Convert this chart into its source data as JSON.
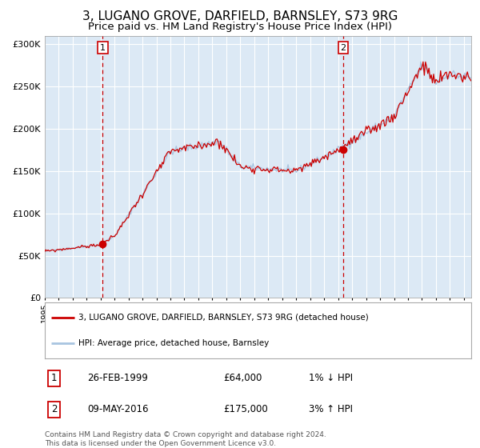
{
  "title": "3, LUGANO GROVE, DARFIELD, BARNSLEY, S73 9RG",
  "subtitle": "Price paid vs. HM Land Registry's House Price Index (HPI)",
  "title_fontsize": 11,
  "subtitle_fontsize": 9.5,
  "bg_color": "#dce9f5",
  "fig_bg_color": "#ffffff",
  "hpi_color": "#a8c4e0",
  "price_color": "#cc0000",
  "marker_color": "#cc0000",
  "vline_color": "#cc0000",
  "grid_color": "#ffffff",
  "ylim": [
    0,
    310000
  ],
  "yticks": [
    0,
    50000,
    100000,
    150000,
    200000,
    250000,
    300000
  ],
  "ytick_labels": [
    "£0",
    "£50K",
    "£100K",
    "£150K",
    "£200K",
    "£250K",
    "£300K"
  ],
  "sale1_date": 1999.15,
  "sale1_price": 64000,
  "sale2_date": 2016.36,
  "sale2_price": 175000,
  "legend_line1": "3, LUGANO GROVE, DARFIELD, BARNSLEY, S73 9RG (detached house)",
  "legend_line2": "HPI: Average price, detached house, Barnsley",
  "table_row1_num": "1",
  "table_row1_date": "26-FEB-1999",
  "table_row1_price": "£64,000",
  "table_row1_hpi": "1% ↓ HPI",
  "table_row2_num": "2",
  "table_row2_date": "09-MAY-2016",
  "table_row2_price": "£175,000",
  "table_row2_hpi": "3% ↑ HPI",
  "footer": "Contains HM Land Registry data © Crown copyright and database right 2024.\nThis data is licensed under the Open Government Licence v3.0.",
  "xmin": 1995.0,
  "xmax": 2025.5
}
